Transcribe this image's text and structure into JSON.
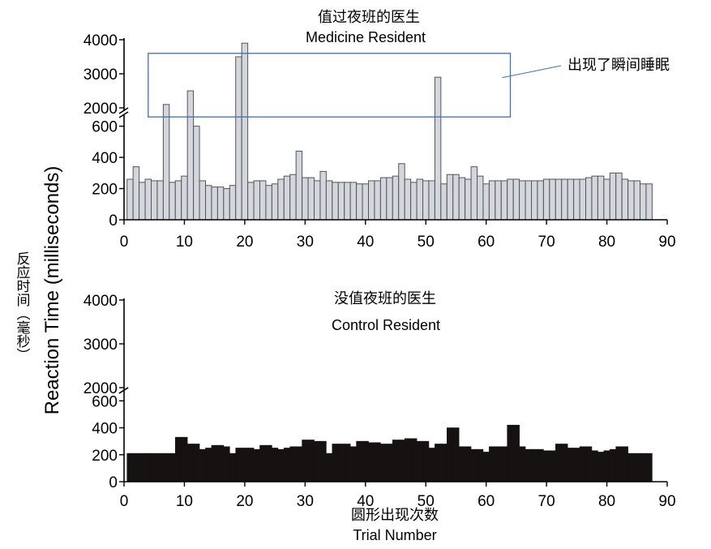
{
  "y_label_cn": "反应时间（毫秒）",
  "y_label_en": "Reaction Time (milliseconds)",
  "x_label_cn": "圆形出现次数",
  "x_label_en": "Trial Number",
  "annotation": "出现了瞬间睡眠",
  "colors": {
    "medicine_bar_fill": "#d3d6dc",
    "medicine_bar_stroke": "#555555",
    "control_bar_fill": "#161212",
    "annotation_box": "#3d6fb3",
    "axis": "#000000"
  },
  "chart_data": [
    {
      "type": "bar",
      "title": "值过夜班的医生",
      "subtitle": "Medicine Resident",
      "xlabel": "Trial Number",
      "ylabel": "Reaction Time (milliseconds)",
      "xlim": [
        0,
        90
      ],
      "x_ticks": [
        "0",
        "10",
        "20",
        "30",
        "40",
        "50",
        "60",
        "70",
        "80",
        "90"
      ],
      "y_ticks_lower": [
        "0",
        "200",
        "400",
        "600"
      ],
      "y_ticks_upper": [
        "2000",
        "3000",
        "4000"
      ],
      "axis_break": {
        "lower_range": [
          0,
          650
        ],
        "upper_range": [
          1900,
          4000
        ]
      },
      "grid": false,
      "x": [
        1,
        2,
        3,
        4,
        5,
        6,
        7,
        8,
        9,
        10,
        11,
        12,
        13,
        14,
        15,
        16,
        17,
        18,
        19,
        20,
        21,
        22,
        23,
        24,
        25,
        26,
        27,
        28,
        29,
        30,
        31,
        32,
        33,
        34,
        35,
        36,
        37,
        38,
        39,
        40,
        41,
        42,
        43,
        44,
        45,
        46,
        47,
        48,
        49,
        50,
        51,
        52,
        53,
        54,
        55,
        56,
        57,
        58,
        59,
        60,
        61,
        62,
        63,
        64,
        65,
        66,
        67,
        68,
        69,
        70,
        71,
        72,
        73,
        74,
        75,
        76,
        77,
        78,
        79,
        80,
        81,
        82,
        83,
        84,
        85,
        86,
        87
      ],
      "values": [
        260,
        340,
        240,
        260,
        250,
        250,
        2100,
        240,
        250,
        280,
        2500,
        600,
        250,
        220,
        210,
        210,
        200,
        220,
        3500,
        3900,
        240,
        250,
        250,
        220,
        230,
        260,
        280,
        290,
        440,
        270,
        270,
        250,
        310,
        250,
        240,
        240,
        240,
        240,
        230,
        230,
        250,
        250,
        270,
        270,
        280,
        360,
        260,
        240,
        260,
        250,
        250,
        2900,
        230,
        290,
        290,
        270,
        260,
        340,
        280,
        230,
        250,
        250,
        250,
        260,
        260,
        250,
        250,
        250,
        250,
        260,
        260,
        260,
        260,
        260,
        260,
        260,
        270,
        280,
        280,
        260,
        300,
        300,
        260,
        250,
        250,
        230,
        230
      ],
      "annotation_box": {
        "x_range": [
          4,
          64
        ],
        "y_range": [
          1900,
          3600
        ],
        "label": "出现了瞬间睡眠"
      }
    },
    {
      "type": "bar",
      "title": "没值夜班的医生",
      "subtitle": "Control Resident",
      "xlabel": "Trial Number",
      "ylabel": "Reaction Time (milliseconds)",
      "xlim": [
        0,
        90
      ],
      "x_ticks": [
        "0",
        "10",
        "20",
        "30",
        "40",
        "50",
        "60",
        "70",
        "80",
        "90"
      ],
      "y_ticks_lower": [
        "0",
        "200",
        "400",
        "600"
      ],
      "y_ticks_upper": [
        "2000",
        "3000",
        "4000"
      ],
      "axis_break": {
        "lower_range": [
          0,
          650
        ],
        "upper_range": [
          1900,
          4000
        ]
      },
      "grid": false,
      "x": [
        1,
        2,
        3,
        4,
        5,
        6,
        7,
        8,
        9,
        10,
        11,
        12,
        13,
        14,
        15,
        16,
        17,
        18,
        19,
        20,
        21,
        22,
        23,
        24,
        25,
        26,
        27,
        28,
        29,
        30,
        31,
        32,
        33,
        34,
        35,
        36,
        37,
        38,
        39,
        40,
        41,
        42,
        43,
        44,
        45,
        46,
        47,
        48,
        49,
        50,
        51,
        52,
        53,
        54,
        55,
        56,
        57,
        58,
        59,
        60,
        61,
        62,
        63,
        64,
        65,
        66,
        67,
        68,
        69,
        70,
        71,
        72,
        73,
        74,
        75,
        76,
        77,
        78,
        79,
        80,
        81,
        82,
        83,
        84,
        85,
        86,
        87
      ],
      "values": [
        210,
        210,
        210,
        210,
        210,
        210,
        210,
        210,
        330,
        330,
        280,
        280,
        240,
        250,
        270,
        270,
        260,
        210,
        250,
        250,
        250,
        240,
        270,
        270,
        250,
        240,
        250,
        260,
        260,
        310,
        310,
        300,
        300,
        210,
        280,
        280,
        280,
        260,
        300,
        300,
        290,
        290,
        280,
        280,
        310,
        310,
        320,
        320,
        300,
        300,
        250,
        280,
        280,
        400,
        400,
        260,
        260,
        240,
        240,
        220,
        260,
        260,
        260,
        420,
        420,
        260,
        240,
        240,
        240,
        230,
        230,
        280,
        280,
        250,
        250,
        260,
        260,
        230,
        220,
        230,
        240,
        260,
        260,
        210,
        210,
        210,
        210
      ]
    }
  ]
}
